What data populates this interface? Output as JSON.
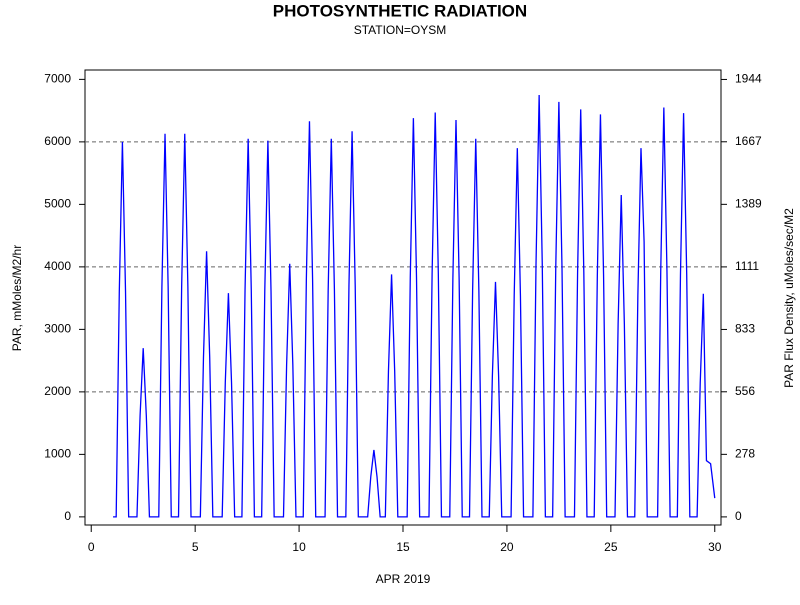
{
  "chart_data": {
    "type": "line",
    "title": "PHOTOSYNTHETIC RADIATION",
    "subtitle": "STATION=OYSM",
    "xlabel": "APR 2019",
    "ylabel": "PAR, mMoles/M2/hr",
    "y2label": "PAR Flux Density, uMoles/sec/M2",
    "xlim": [
      -0.3,
      30.3
    ],
    "xticks": [
      0,
      5,
      10,
      15,
      20,
      25,
      30
    ],
    "ylim": [
      -130,
      7150
    ],
    "yticks": [
      0,
      1000,
      2000,
      3000,
      4000,
      5000,
      6000,
      7000
    ],
    "y2lim": [
      -36,
      1986
    ],
    "y2ticks": [
      0,
      278,
      556,
      833,
      1111,
      1389,
      1667,
      1944
    ],
    "grid": true,
    "series": [
      {
        "color": "#0000ff",
        "x": [
          1.05,
          1.2,
          1.35,
          1.5,
          1.65,
          1.8,
          2.2,
          2.35,
          2.5,
          2.65,
          2.8,
          3.25,
          3.4,
          3.55,
          3.7,
          3.85,
          4.2,
          4.35,
          4.5,
          4.65,
          4.8,
          5.25,
          5.4,
          5.55,
          5.7,
          5.85,
          6.3,
          6.45,
          6.6,
          6.75,
          6.9,
          7.25,
          7.4,
          7.55,
          7.7,
          7.85,
          8.2,
          8.35,
          8.5,
          8.65,
          8.8,
          9.25,
          9.4,
          9.55,
          9.7,
          9.85,
          10.2,
          10.35,
          10.5,
          10.65,
          10.8,
          11.25,
          11.4,
          11.55,
          11.7,
          11.85,
          12.25,
          12.4,
          12.55,
          12.7,
          12.85,
          13.3,
          13.45,
          13.6,
          13.75,
          13.9,
          14.15,
          14.3,
          14.45,
          14.6,
          14.75,
          15.2,
          15.35,
          15.5,
          15.65,
          15.8,
          16.25,
          16.4,
          16.55,
          16.7,
          16.85,
          17.25,
          17.4,
          17.55,
          17.7,
          17.85,
          18.2,
          18.35,
          18.5,
          18.65,
          18.8,
          19.15,
          19.3,
          19.45,
          19.6,
          19.75,
          20.2,
          20.35,
          20.5,
          20.65,
          20.8,
          21.25,
          21.4,
          21.55,
          21.7,
          21.85,
          22.2,
          22.35,
          22.5,
          22.65,
          22.8,
          23.25,
          23.4,
          23.55,
          23.7,
          23.85,
          24.2,
          24.35,
          24.5,
          24.65,
          24.8,
          25.2,
          25.35,
          25.5,
          25.65,
          25.8,
          26.15,
          26.3,
          26.45,
          26.6,
          26.75,
          27.25,
          27.4,
          27.55,
          27.7,
          27.85,
          28.2,
          28.35,
          28.5,
          28.65,
          28.8,
          29.15,
          29.3,
          29.45,
          29.6,
          29.8,
          30.0
        ],
        "values": [
          0,
          0,
          3600,
          6000,
          3600,
          0,
          0,
          1620,
          2700,
          1620,
          0,
          0,
          3678,
          6130,
          3678,
          0,
          0,
          3678,
          6130,
          3678,
          0,
          0,
          2550,
          4250,
          2550,
          0,
          0,
          2148,
          3580,
          2148,
          0,
          0,
          3630,
          6050,
          3630,
          0,
          0,
          3612,
          6020,
          3612,
          0,
          0,
          2430,
          4050,
          2430,
          0,
          0,
          3798,
          6330,
          3798,
          0,
          0,
          3630,
          6050,
          3630,
          0,
          0,
          3702,
          6170,
          3702,
          0,
          0,
          642,
          1070,
          642,
          0,
          0,
          2328,
          3880,
          2328,
          0,
          0,
          3828,
          6380,
          3828,
          0,
          0,
          3882,
          6470,
          3882,
          0,
          0,
          3810,
          6350,
          3810,
          0,
          0,
          3630,
          6050,
          3630,
          0,
          0,
          2256,
          3760,
          2256,
          0,
          0,
          3540,
          5900,
          3540,
          0,
          0,
          4050,
          6750,
          4050,
          0,
          0,
          3984,
          6640,
          3984,
          0,
          0,
          3912,
          6520,
          3912,
          0,
          0,
          3864,
          6440,
          3864,
          0,
          0,
          3090,
          5150,
          3090,
          0,
          0,
          3540,
          5900,
          4400,
          0,
          0,
          3930,
          6550,
          3930,
          0,
          0,
          3876,
          6460,
          3876,
          0,
          0,
          2142,
          3570,
          900,
          850,
          300
        ]
      }
    ]
  }
}
